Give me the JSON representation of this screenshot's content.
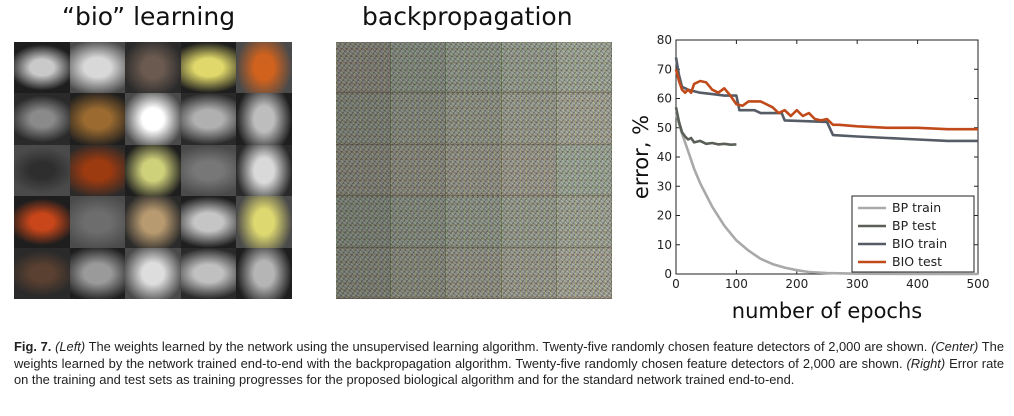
{
  "panels": {
    "left_title": "“bio” learning",
    "center_title": "backpropagation"
  },
  "bio_tiles": [
    "#c9c9c9",
    "#d8d8d8",
    "#6a5a50",
    "#e0d86a",
    "#d0621e",
    "#8a8a8a",
    "#9a6a30",
    "#ffffff",
    "#b0b0b0",
    "#bdbdbd",
    "#2e2e2e",
    "#9c3a10",
    "#cfd07a",
    "#777777",
    "#d9d9d9",
    "#c8461a",
    "#6d6d6d",
    "#b89a70",
    "#c5c5c5",
    "#ded870",
    "#5a4030",
    "#9a9a9a",
    "#dddddd",
    "#c0c0c0",
    "#b5b5b5"
  ],
  "chart_data": {
    "type": "line",
    "xlabel": "number of epochs",
    "ylabel": "error, %",
    "xlim": [
      0,
      500
    ],
    "ylim": [
      0,
      80
    ],
    "xticks": [
      "0",
      "100",
      "200",
      "300",
      "400",
      "500"
    ],
    "yticks": [
      "0",
      "10",
      "20",
      "30",
      "40",
      "50",
      "60",
      "70",
      "80"
    ],
    "grid": false,
    "legend": "lower-right",
    "series": [
      {
        "name": "BP train",
        "color": "#a9a9a9",
        "x": [
          0,
          10,
          20,
          30,
          40,
          50,
          60,
          80,
          100,
          120,
          140,
          160,
          180,
          200,
          220,
          250,
          300,
          400,
          500
        ],
        "y": [
          55,
          48,
          42,
          36,
          31,
          27,
          23,
          16.5,
          11.5,
          8,
          5.2,
          3.4,
          2.2,
          1.3,
          0.7,
          0.3,
          0.1,
          0.05,
          0
        ]
      },
      {
        "name": "BP test",
        "color": "#5a6058",
        "x": [
          0,
          5,
          10,
          15,
          20,
          25,
          30,
          40,
          50,
          60,
          70,
          80,
          90,
          100
        ],
        "y": [
          57,
          52,
          48.5,
          47,
          46,
          46.5,
          45,
          45.5,
          44.5,
          44.8,
          44.3,
          44.5,
          44.2,
          44.3
        ]
      },
      {
        "name": "BIO train",
        "color": "#555c66",
        "x": [
          0,
          5,
          10,
          20,
          30,
          40,
          60,
          80,
          100,
          105,
          130,
          140,
          175,
          180,
          250,
          260,
          300,
          350,
          400,
          450,
          500
        ],
        "y": [
          74,
          68,
          64,
          63,
          62.5,
          62,
          61.5,
          61,
          61,
          56,
          56,
          55,
          55,
          52.5,
          52,
          47.5,
          47,
          46.5,
          46,
          45.5,
          45.5
        ]
      },
      {
        "name": "BIO test",
        "color": "#c14a1a",
        "x": [
          0,
          5,
          10,
          15,
          20,
          25,
          30,
          40,
          50,
          60,
          70,
          80,
          90,
          100,
          110,
          120,
          140,
          160,
          170,
          180,
          190,
          200,
          210,
          220,
          230,
          240,
          250,
          260,
          270,
          300,
          350,
          400,
          450,
          500
        ],
        "y": [
          70,
          66,
          63,
          62,
          63,
          62,
          65,
          66,
          65.5,
          63,
          62,
          63.5,
          61,
          58,
          57.5,
          59,
          59,
          57,
          55,
          56,
          54,
          56,
          54,
          55,
          53,
          52.5,
          53,
          51,
          51,
          50.5,
          50,
          50,
          49.5,
          49.5
        ]
      }
    ]
  },
  "caption": {
    "fig_label": "Fig. 7.",
    "left_tag": "(Left)",
    "part1": " The weights learned by the network using the unsupervised learning algorithm. Twenty-five randomly chosen feature detectors of 2,000 are shown. ",
    "center_tag": "(Center)",
    "part2": " The weights learned by the network trained end-to-end with the backpropagation algorithm. Twenty-five randomly chosen feature detectors of 2,000 are shown. ",
    "right_tag": "(Right)",
    "part3": " Error rate on the training and test sets as training progresses for the proposed biological algorithm and for the standard network trained end-to-end."
  }
}
